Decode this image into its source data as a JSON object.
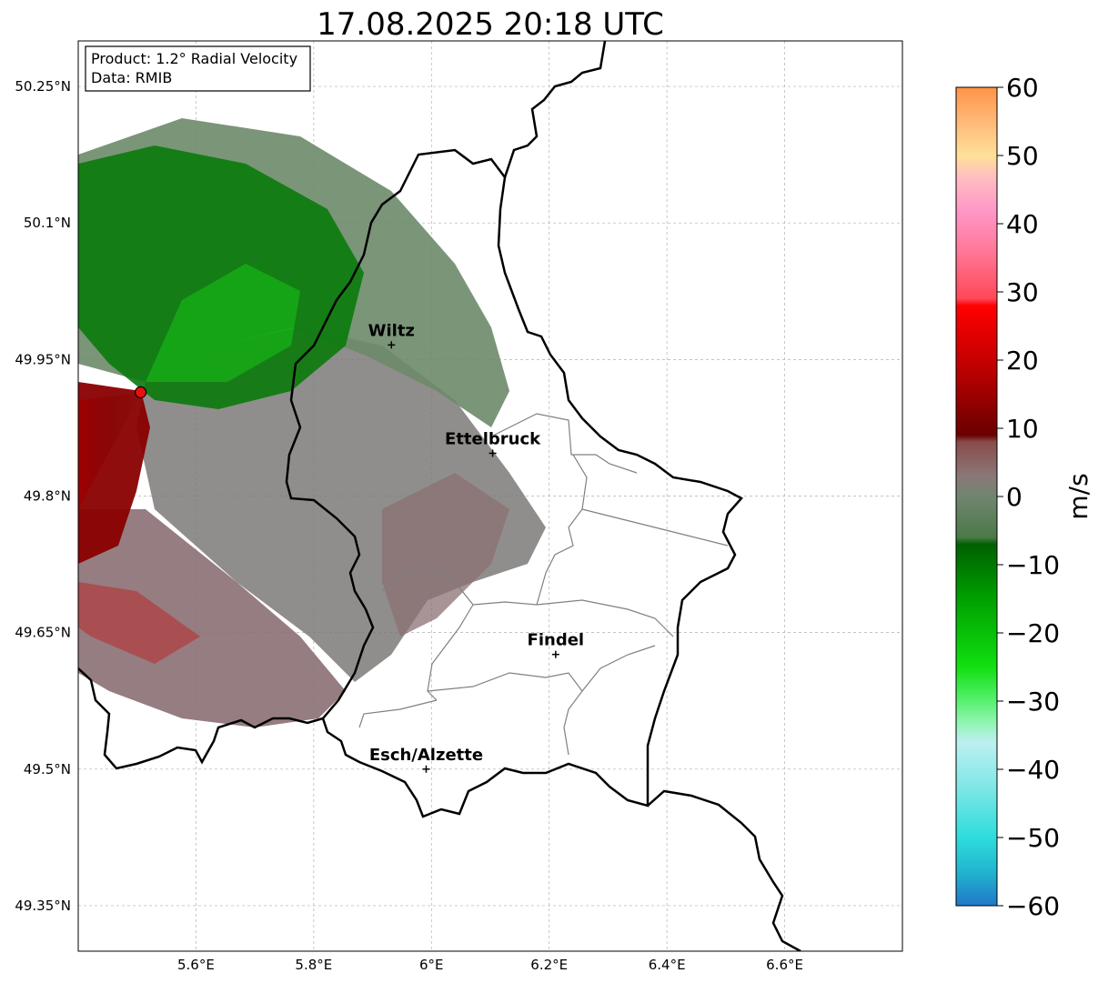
{
  "title": "17.08.2025 20:18 UTC",
  "info_box": {
    "product": "Product: 1.2° Radial Velocity",
    "data_source": "Data: RMIB"
  },
  "map": {
    "lon_range": [
      5.4,
      6.8
    ],
    "lat_range": [
      49.3,
      50.3
    ],
    "lon_ticks": [
      {
        "value": 5.6,
        "label": "5.6°E"
      },
      {
        "value": 5.8,
        "label": "5.8°E"
      },
      {
        "value": 6.0,
        "label": "6°E"
      },
      {
        "value": 6.2,
        "label": "6.2°E"
      },
      {
        "value": 6.4,
        "label": "6.4°E"
      },
      {
        "value": 6.6,
        "label": "6.6°E"
      }
    ],
    "lat_ticks": [
      {
        "value": 50.25,
        "label": "50.25°N"
      },
      {
        "value": 50.1,
        "label": "50.1°N"
      },
      {
        "value": 49.95,
        "label": "49.95°N"
      },
      {
        "value": 49.8,
        "label": "49.8°N"
      },
      {
        "value": 49.65,
        "label": "49.65°N"
      },
      {
        "value": 49.5,
        "label": "49.5°N"
      },
      {
        "value": 49.35,
        "label": "49.35°N"
      }
    ],
    "radar_site": {
      "lon": 5.506,
      "lat": 49.914,
      "color": "#e8110f"
    },
    "cities": [
      {
        "name": "Wiltz",
        "lon": 5.932,
        "lat": 49.966
      },
      {
        "name": "Ettelbruck",
        "lon": 6.104,
        "lat": 49.847
      },
      {
        "name": "Findel",
        "lon": 6.211,
        "lat": 49.626
      },
      {
        "name": "Esch/Alzette",
        "lon": 5.991,
        "lat": 49.5
      }
    ]
  },
  "colorbar": {
    "label": "m/s",
    "range": [
      -60,
      60
    ],
    "ticks": [
      {
        "value": 60,
        "label": "60"
      },
      {
        "value": 50,
        "label": "50"
      },
      {
        "value": 40,
        "label": "40"
      },
      {
        "value": 30,
        "label": "30"
      },
      {
        "value": 20,
        "label": "20"
      },
      {
        "value": 10,
        "label": "10"
      },
      {
        "value": 0,
        "label": "0"
      },
      {
        "value": -10,
        "label": "−10"
      },
      {
        "value": -20,
        "label": "−20"
      },
      {
        "value": -30,
        "label": "−30"
      },
      {
        "value": -40,
        "label": "−40"
      },
      {
        "value": -50,
        "label": "−50"
      },
      {
        "value": -60,
        "label": "−60"
      }
    ],
    "stops": [
      {
        "value": -60,
        "color": "#1f78c8"
      },
      {
        "value": -55,
        "color": "#22b5d0"
      },
      {
        "value": -50,
        "color": "#2edcdc"
      },
      {
        "value": -42,
        "color": "#86e8e8"
      },
      {
        "value": -36,
        "color": "#bdf0f0"
      },
      {
        "value": -33,
        "color": "#8ef5b0"
      },
      {
        "value": -30,
        "color": "#58f070"
      },
      {
        "value": -25,
        "color": "#10e010"
      },
      {
        "value": -15,
        "color": "#00a000"
      },
      {
        "value": -7,
        "color": "#006000"
      },
      {
        "value": -6,
        "color": "#4a7a48"
      },
      {
        "value": 0,
        "color": "#708570"
      },
      {
        "value": 3,
        "color": "#8a7878"
      },
      {
        "value": 8,
        "color": "#8a4a4a"
      },
      {
        "value": 9,
        "color": "#6a0000"
      },
      {
        "value": 18,
        "color": "#b80000"
      },
      {
        "value": 28,
        "color": "#ff0000"
      },
      {
        "value": 29,
        "color": "#ff4858"
      },
      {
        "value": 36,
        "color": "#ff7898"
      },
      {
        "value": 42,
        "color": "#ff98c8"
      },
      {
        "value": 47,
        "color": "#ffc0c0"
      },
      {
        "value": 50,
        "color": "#ffe098"
      },
      {
        "value": 55,
        "color": "#ffb878"
      },
      {
        "value": 60,
        "color": "#ff9448"
      }
    ]
  }
}
